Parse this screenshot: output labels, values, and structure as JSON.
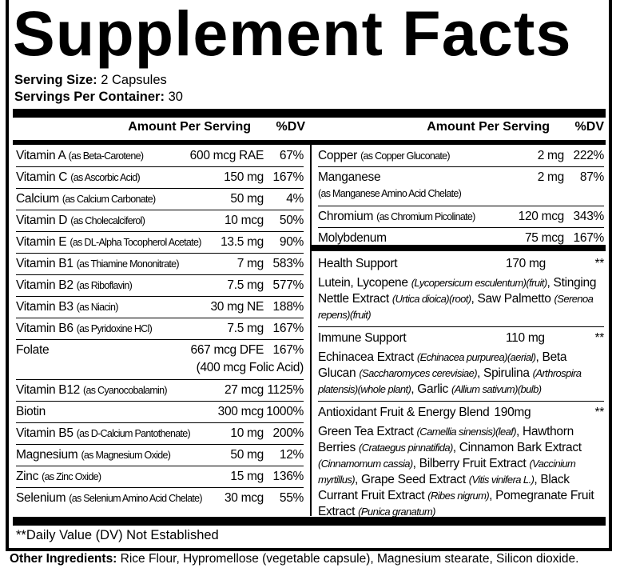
{
  "title": "Supplement Facts",
  "serving_size_label": "Serving Size:",
  "serving_size": "2 Capsules",
  "servings_label": "Servings Per Container:",
  "servings": "30",
  "header": {
    "amount": "Amount Per Serving",
    "dv": "%DV"
  },
  "left": [
    {
      "name": "Vitamin A",
      "form": "(as Beta-Carotene)",
      "amount": "600 mcg RAE",
      "dv": "67%"
    },
    {
      "name": "Vitamin C",
      "form": "(as Ascorbic Acid)",
      "amount": "150 mg",
      "dv": "167%"
    },
    {
      "name": "Calcium",
      "form": "(as Calcium Carbonate)",
      "amount": "50 mg",
      "dv": "4%"
    },
    {
      "name": "Vitamin D",
      "form": "(as Cholecalciferol)",
      "amount": "10 mcg",
      "dv": "50%"
    },
    {
      "name": "Vitamin E",
      "form": "(as DL-Alpha Tocopherol Acetate)",
      "amount": "13.5 mg",
      "dv": "90%"
    },
    {
      "name": "Vitamin B1",
      "form": "(as Thiamine Mononitrate)",
      "amount": "7 mg",
      "dv": "583%"
    },
    {
      "name": "Vitamin B2",
      "form": "(as Riboflavin)",
      "amount": "7.5 mg",
      "dv": "577%"
    },
    {
      "name": "Vitamin B3",
      "form": "(as Niacin)",
      "amount": "30 mg NE",
      "dv": "188%"
    },
    {
      "name": "Vitamin B6",
      "form": "(as Pyridoxine HCl)",
      "amount": "7.5 mg",
      "dv": "167%"
    },
    {
      "name": "Folate",
      "form": "",
      "amount": "667 mcg DFE",
      "amount2": "(400 mcg Folic Acid)",
      "dv": "167%"
    },
    {
      "name": "Vitamin B12",
      "form": "(as Cyanocobalamin)",
      "amount": "27 mcg",
      "dv": "1125%"
    },
    {
      "name": "Biotin",
      "form": "",
      "amount": "300 mcg",
      "dv": "1000%"
    },
    {
      "name": "Vitamin B5",
      "form": "(as D-Calcium Pantothenate)",
      "amount": "10 mg",
      "dv": "200%"
    },
    {
      "name": "Magnesium",
      "form": "(as Magnesium Oxide)",
      "amount": "50 mg",
      "dv": "12%"
    },
    {
      "name": "Zinc",
      "form": "(as Zinc Oxide)",
      "amount": "15 mg",
      "dv": "136%"
    },
    {
      "name": "Selenium",
      "form": "(as Selenium Amino Acid Chelate)",
      "amount": "30 mcg",
      "dv": "55%"
    }
  ],
  "right": [
    {
      "name": "Copper",
      "form": "(as Copper Gluconate)",
      "amount": "2 mg",
      "dv": "222%"
    },
    {
      "name": "Manganese",
      "form": "(as Manganese Amino Acid Chelate)",
      "amount": "2 mg",
      "dv": "87%"
    },
    {
      "name": "Chromium",
      "form": "(as Chromium Picolinate)",
      "amount": "120 mcg",
      "dv": "343%"
    },
    {
      "name": "Molybdenum",
      "form": "",
      "amount": "75 mcg",
      "dv": "167%"
    }
  ],
  "blends": [
    {
      "name": "Health Support",
      "amount": "170 mg",
      "dv": "**",
      "parts": [
        [
          "Lutein, Lycopene ",
          "(Lycopersicum esculentum)(fruit)"
        ],
        [
          ", Stinging Nettle Extract ",
          "(Urtica dioica)(root)"
        ],
        [
          ", Saw Palmetto ",
          "(Serenoa repens)(fruit)"
        ]
      ]
    },
    {
      "name": "Immune Support",
      "amount": "110 mg",
      "dv": "**",
      "parts": [
        [
          "Echinacea Extract ",
          "(Echinacea purpurea)(aerial)"
        ],
        [
          ", Beta Glucan ",
          "(Saccharomyces cerevisiae)"
        ],
        [
          ", Spirulina ",
          "(Arthrospira platensis)(whole plant)"
        ],
        [
          ", Garlic ",
          "(Allium sativum)(bulb)"
        ]
      ]
    },
    {
      "name": "Antioxidant Fruit & Energy Blend",
      "amount": "190mg",
      "dv": "**",
      "parts": [
        [
          "Green Tea Extract ",
          "(Camellia sinensis)(leaf)"
        ],
        [
          ", Hawthorn Berries ",
          "(Crataegus pinnatifida)"
        ],
        [
          ", Cinnamon Bark Extract ",
          "(Cinnamomum cassia)"
        ],
        [
          ", Bilberry Fruit Extract ",
          "(Vaccinium myrtillus)"
        ],
        [
          ", Grape Seed Extract ",
          "(Vitis vinifera L.)"
        ],
        [
          ", Black Currant Fruit Extract ",
          "(Ribes nigrum)"
        ],
        [
          ", Pomegranate Fruit Extract ",
          "(Punica granatum)"
        ]
      ]
    }
  ],
  "footnote": "**Daily Value (DV) Not Established",
  "other_label": "Other Ingredients:",
  "other": "Rice Flour, Hypromellose (vegetable capsule), Magnesium stearate, Silicon dioxide."
}
